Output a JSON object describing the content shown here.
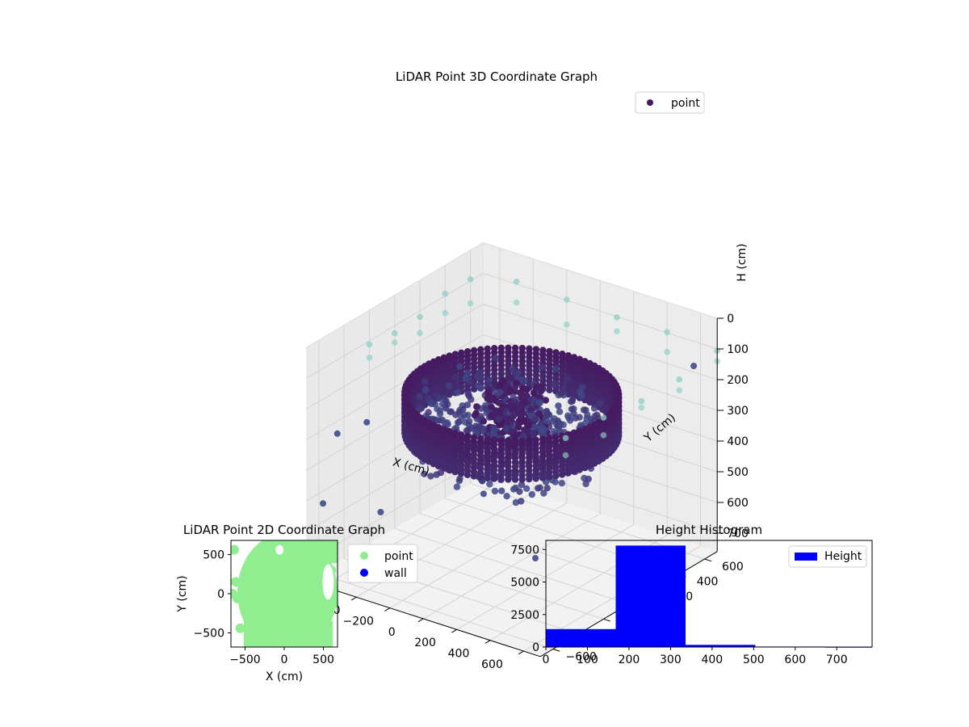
{
  "chart_data": [
    {
      "type": "scatter",
      "projection": "3d",
      "title": "LiDAR Point 3D Coordinate Graph",
      "xlabel": "X (cm)",
      "ylabel": "Y (cm)",
      "zlabel": "H (cm)",
      "xlim": [
        -700,
        700
      ],
      "ylim": [
        -700,
        700
      ],
      "zlim": [
        0,
        760
      ],
      "z_inverted": true,
      "xticks": [
        -600,
        -400,
        -200,
        0,
        200,
        400,
        600
      ],
      "yticks": [
        -600,
        -400,
        -200,
        0,
        200,
        400,
        600
      ],
      "zticks": [
        0,
        100,
        200,
        300,
        400,
        500,
        600,
        700
      ],
      "grid": true,
      "legend": {
        "position": "top-right",
        "entries": [
          "point"
        ]
      },
      "colors": {
        "point": "#46185f",
        "low": "#8ecfc4",
        "mid": "#3e4b8a"
      },
      "series": [
        {
          "name": "point",
          "shape": "ring",
          "radius": 520,
          "h_range": [
            200,
            330
          ],
          "grid_points": [
            [
              -620,
              -560,
              300
            ],
            [
              -640,
              -300,
              330
            ],
            [
              -560,
              200,
              340
            ],
            [
              300,
              -620,
              320
            ],
            [
              620,
              620,
              150
            ],
            [
              640,
              -660,
              460
            ],
            [
              -660,
              -620,
              520
            ],
            [
              -300,
              -640,
              480
            ]
          ],
          "high_points": [
            [
              -700,
              -200,
              110
            ],
            [
              -700,
              0,
              110
            ],
            [
              -700,
              200,
              110
            ],
            [
              -700,
              400,
              110
            ],
            [
              -700,
              600,
              110
            ],
            [
              -500,
              700,
              110
            ],
            [
              -200,
              700,
              110
            ],
            [
              100,
              700,
              110
            ],
            [
              400,
              700,
              110
            ],
            [
              700,
              700,
              110
            ],
            [
              700,
              400,
              110
            ],
            [
              700,
              100,
              110
            ],
            [
              700,
              -200,
              110
            ],
            [
              700,
              -500,
              110
            ]
          ]
        }
      ]
    },
    {
      "type": "scatter",
      "title": "LiDAR Point 2D Coordinate Graph",
      "xlabel": "X (cm)",
      "ylabel": "Y (cm)",
      "xlim": [
        -680,
        680
      ],
      "ylim": [
        -680,
        680
      ],
      "xticks": [
        -500,
        0,
        500
      ],
      "yticks": [
        -500,
        0,
        500
      ],
      "legend": {
        "position": "outside-right",
        "entries": [
          "point",
          "wall"
        ]
      },
      "series": [
        {
          "name": "point",
          "color": "#90ee90",
          "region": "filled disc, radius ~650, clipped to axes"
        },
        {
          "name": "wall",
          "color": "#0000ff",
          "values": []
        }
      ]
    },
    {
      "type": "bar",
      "title": "Height Histogram",
      "xlim": [
        0,
        785
      ],
      "ylim": [
        0,
        8200
      ],
      "xticks": [
        0,
        100,
        200,
        300,
        400,
        500,
        600,
        700
      ],
      "yticks": [
        0,
        2500,
        5000,
        7500
      ],
      "legend": {
        "position": "top-right",
        "entries": [
          "Height"
        ]
      },
      "series": [
        {
          "name": "Height",
          "color": "#0000ff",
          "bins": [
            [
              0,
              168,
              1380
            ],
            [
              168,
              336,
              7800
            ],
            [
              336,
              504,
              170
            ],
            [
              504,
              672,
              40
            ],
            [
              672,
              785,
              20
            ]
          ]
        }
      ]
    }
  ]
}
